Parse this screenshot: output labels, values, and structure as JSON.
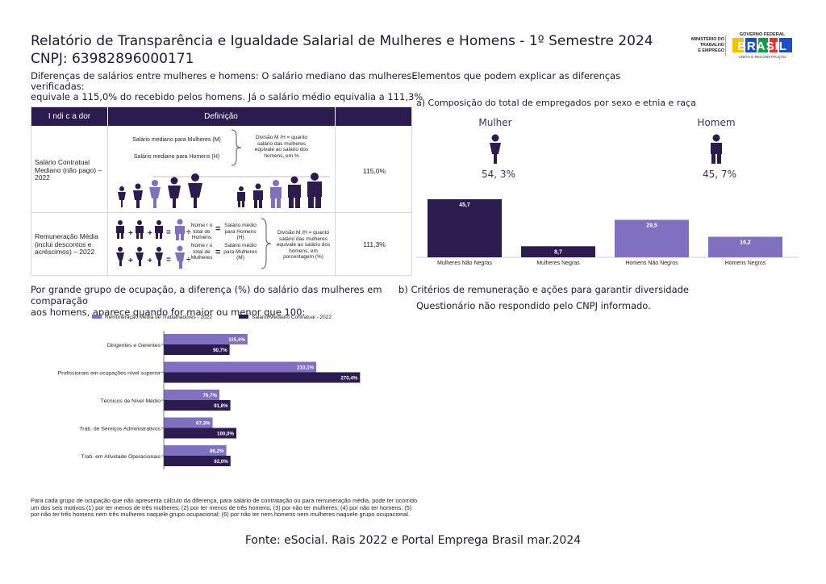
{
  "header": {
    "title": "Relatório de Transparência e Igualdade Salarial de Mulheres e Homens - 1º Semestre 2024",
    "cnpj": "CNPJ: 63982896000171",
    "subtitle_line1": "Diferenças de salários entre mulheres e homens: O salário mediano das mulheresElementos que podem explicar as diferenças verificadas:",
    "subtitle_line2": "equivale a 115,0% do recebido pelos homens. Já o salário médio equivalia a 111,3%"
  },
  "logos": {
    "ministerio": [
      "MINISTÉRIO DO",
      "TRABALHO",
      "E EMPREGO"
    ],
    "gov_top": "GOVERNO FEDERAL",
    "gov_brand": "BRASIL",
    "gov_bottom": "UNIÃO E RECONSTRUÇÃO"
  },
  "indicator_table": {
    "headers": [
      "I ndi c a dor",
      "Definição",
      ""
    ],
    "row1": {
      "label": "Salário Contratual Mediano (não pago) – 2022",
      "mediano_mulheres": "Salário mediano para Mulheres (M)",
      "mediano_homens": "Salário mediano para Homens (H)",
      "divisao": "Divisão M /H = quanto salário das mulheres equivale ao salário dos homens, em %",
      "value": "115,0%"
    },
    "row2": {
      "label": "Remuneração Média (inclui descontos e acréscimos) – 2022",
      "num_homens": "Núme r o total de Homens",
      "num_mulheres": "Núme r o total de Mulheres",
      "medio_homens": "Salário médio para Homens (H)",
      "medio_mulheres": "Salário médio para Mulheres (M)",
      "divisao": "Divisão M /H = quanto salário das mulheres equivale ao salário dos homens, em porcentagem (%)",
      "value": "111,3%"
    }
  },
  "composition": {
    "title": "a) Composição do total de empregados por sexo e etnia e raça",
    "mulher_label": "Mulher",
    "mulher_pct": "54, 3%",
    "homem_label": "Homem",
    "homem_pct": "45, 7%"
  },
  "chart_data": [
    {
      "type": "bar",
      "categories": [
        "Mulheres Não Negras",
        "Mulheres Negras",
        "Homens Não Negros",
        "Homens Negros"
      ],
      "values": [
        45.7,
        8.7,
        29.5,
        16.2
      ],
      "labels": [
        "45,7",
        "8,7",
        "29,5",
        "16,2"
      ],
      "colors": [
        "#2b1b4e",
        "#2b1b4e",
        "#8070c0",
        "#8070c0"
      ]
    },
    {
      "type": "bar",
      "orientation": "horizontal",
      "categories": [
        "Dirigentes e Gerentes",
        "Profissionais em ocupações nível superior",
        "Técnicos de Nível Médio",
        "Trab. de Serviços Administrativos",
        "Trab. em Atividade Operacionais"
      ],
      "series": [
        {
          "name": "Remuneração Média de Trabalhadores - 2022",
          "values": [
            115.4,
            210.1,
            76.7,
            67.3,
            86.2
          ],
          "labels": [
            "115,4%",
            "210,1%",
            "76,7%",
            "67,3%",
            "86,2%"
          ],
          "color": "#8070c0"
        },
        {
          "name": "Salário Mediano Contratual - 2022",
          "values": [
            90.7,
            270.4,
            91.8,
            100.0,
            92.0
          ],
          "labels": [
            "90,7%",
            "270,4%",
            "91,8%",
            "100,0%",
            "92,0%"
          ],
          "color": "#2b1b4e"
        }
      ]
    }
  ],
  "occupation": {
    "text_line1": "Por grande grupo de ocupação, a diferença (%) do salário das mulheres em comparação",
    "text_line2": "aos homens, aparece quando for maior ou menor que 100:"
  },
  "criteria": {
    "title": "b) Critérios de remuneração e ações para garantir diversidade",
    "status": "Questionário não respondido pelo CNPJ informado."
  },
  "footnote": "Para cada grupo de ocupação que não apresenta cálculo da diferença, para salário de contratação ou para remuneração média, pode ter ocorrido um dos seis motivos:(1) por ter menos de três mulheres; (2) por ter menos de três homens; (3) por não ter mulheres; (4) por não ter homens; (5) por não ter três homens nem três mulheres naquele grupo ocupacional; (6) por não ter nem homens nem mulheres naquele grupo ocupacional.",
  "source": "Fonte: eSocial. Rais 2022 e Portal Emprega Brasil mar.2024"
}
